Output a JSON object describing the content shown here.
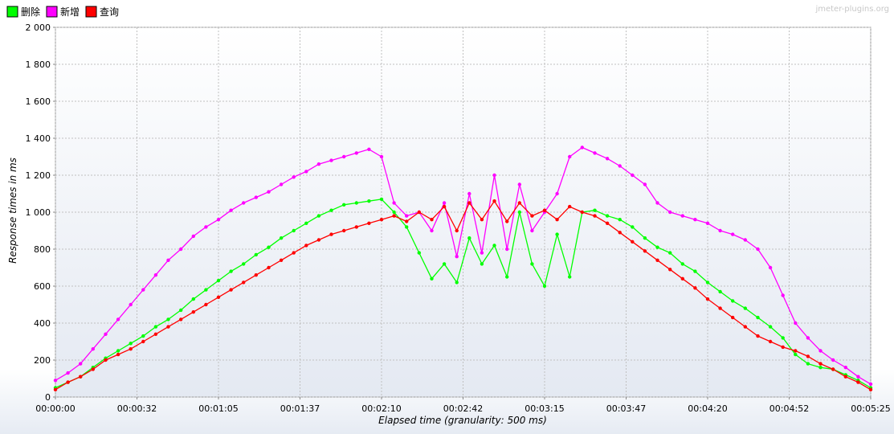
{
  "watermark": "jmeter-plugins.org",
  "chart_data": {
    "type": "line",
    "title": "",
    "xlabel": "Elapsed time (granularity: 500 ms)",
    "ylabel": "Response times in ms",
    "ylim": [
      0,
      2000
    ],
    "yticks": [
      0,
      200,
      400,
      600,
      800,
      1000,
      1200,
      1400,
      1600,
      1800,
      2000
    ],
    "ytick_labels": [
      "0",
      "200",
      "400",
      "600",
      "800",
      "1 000",
      "1 200",
      "1 400",
      "1 600",
      "1 800",
      "2 000"
    ],
    "xlim": [
      0,
      325
    ],
    "xtick_labels": [
      "00:00:00",
      "00:00:32",
      "00:01:05",
      "00:01:37",
      "00:02:10",
      "00:02:42",
      "00:03:15",
      "00:03:47",
      "00:04:20",
      "00:04:52",
      "00:05:25"
    ],
    "xtick_seconds": [
      0,
      32.5,
      65,
      97.5,
      130,
      162.5,
      195,
      227.5,
      260,
      292.5,
      325
    ],
    "grid": true,
    "legend": "top-left",
    "series": [
      {
        "name": "删除",
        "color": "#00ff00",
        "x": [
          0,
          5,
          10,
          15,
          20,
          25,
          30,
          35,
          40,
          45,
          50,
          55,
          60,
          65,
          70,
          75,
          80,
          85,
          90,
          95,
          100,
          105,
          110,
          115,
          120,
          125,
          130,
          135,
          140,
          145,
          150,
          155,
          160,
          165,
          170,
          175,
          180,
          185,
          190,
          195,
          200,
          205,
          210,
          215,
          220,
          225,
          230,
          235,
          240,
          245,
          250,
          255,
          260,
          265,
          270,
          275,
          280,
          285,
          290,
          295,
          300,
          305,
          310,
          315,
          320,
          325
        ],
        "y": [
          50,
          80,
          110,
          160,
          210,
          250,
          290,
          330,
          380,
          420,
          470,
          530,
          580,
          630,
          680,
          720,
          770,
          810,
          860,
          900,
          940,
          980,
          1010,
          1040,
          1050,
          1060,
          1070,
          1000,
          920,
          780,
          640,
          720,
          620,
          860,
          720,
          820,
          650,
          1000,
          720,
          600,
          880,
          650,
          1000,
          1010,
          980,
          960,
          920,
          860,
          810,
          780,
          720,
          680,
          620,
          570,
          520,
          480,
          430,
          380,
          320,
          230,
          180,
          160,
          150,
          120,
          90,
          50
        ]
      },
      {
        "name": "新增",
        "color": "#ff00ff",
        "x": [
          0,
          5,
          10,
          15,
          20,
          25,
          30,
          35,
          40,
          45,
          50,
          55,
          60,
          65,
          70,
          75,
          80,
          85,
          90,
          95,
          100,
          105,
          110,
          115,
          120,
          125,
          130,
          135,
          140,
          145,
          150,
          155,
          160,
          165,
          170,
          175,
          180,
          185,
          190,
          195,
          200,
          205,
          210,
          215,
          220,
          225,
          230,
          235,
          240,
          245,
          250,
          255,
          260,
          265,
          270,
          275,
          280,
          285,
          290,
          295,
          300,
          305,
          310,
          315,
          320,
          325
        ],
        "y": [
          90,
          130,
          180,
          260,
          340,
          420,
          500,
          580,
          660,
          740,
          800,
          870,
          920,
          960,
          1010,
          1050,
          1080,
          1110,
          1150,
          1190,
          1220,
          1260,
          1280,
          1300,
          1320,
          1340,
          1300,
          1050,
          980,
          1000,
          900,
          1050,
          760,
          1100,
          780,
          1200,
          800,
          1150,
          900,
          1000,
          1100,
          1300,
          1350,
          1320,
          1290,
          1250,
          1200,
          1150,
          1050,
          1000,
          980,
          960,
          940,
          900,
          880,
          850,
          800,
          700,
          550,
          400,
          320,
          250,
          200,
          160,
          110,
          70
        ]
      },
      {
        "name": "查询",
        "color": "#ff0000",
        "x": [
          0,
          5,
          10,
          15,
          20,
          25,
          30,
          35,
          40,
          45,
          50,
          55,
          60,
          65,
          70,
          75,
          80,
          85,
          90,
          95,
          100,
          105,
          110,
          115,
          120,
          125,
          130,
          135,
          140,
          145,
          150,
          155,
          160,
          165,
          170,
          175,
          180,
          185,
          190,
          195,
          200,
          205,
          210,
          215,
          220,
          225,
          230,
          235,
          240,
          245,
          250,
          255,
          260,
          265,
          270,
          275,
          280,
          285,
          290,
          295,
          300,
          305,
          310,
          315,
          320,
          325
        ],
        "y": [
          40,
          80,
          110,
          150,
          200,
          230,
          260,
          300,
          340,
          380,
          420,
          460,
          500,
          540,
          580,
          620,
          660,
          700,
          740,
          780,
          820,
          850,
          880,
          900,
          920,
          940,
          960,
          980,
          950,
          1000,
          960,
          1030,
          900,
          1050,
          960,
          1060,
          950,
          1050,
          980,
          1010,
          960,
          1030,
          1000,
          980,
          940,
          890,
          840,
          790,
          740,
          690,
          640,
          590,
          530,
          480,
          430,
          380,
          330,
          300,
          270,
          250,
          220,
          180,
          150,
          110,
          80,
          40
        ]
      }
    ]
  }
}
